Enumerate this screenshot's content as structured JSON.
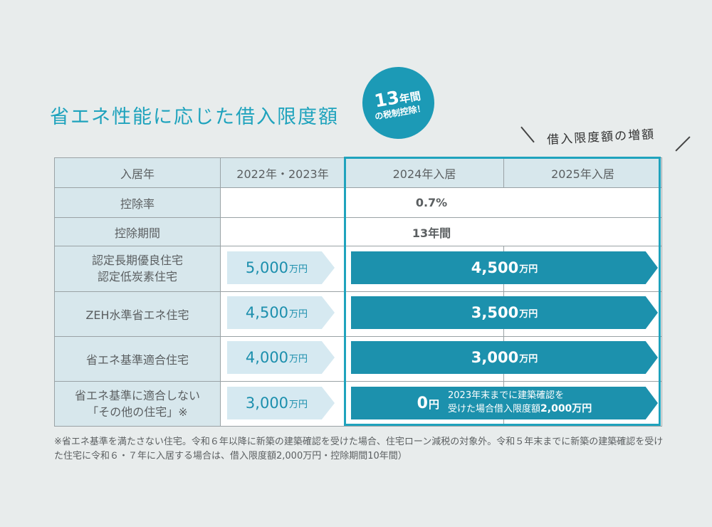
{
  "title": "省エネ性能に応じた借入限度額",
  "badge": {
    "years": "13",
    "years_unit": "年間",
    "sub": "の税制控除！"
  },
  "increase_label": "借入限度額の増額",
  "table": {
    "headers": [
      "入居年",
      "2022年・2023年",
      "2024年入居",
      "2025年入居"
    ],
    "rate_label": "控除率",
    "rate_value": "0.7%",
    "period_label": "控除期間",
    "period_value": "13年間",
    "rows": [
      {
        "label": "認定長期優良住宅\n認定低炭素住宅",
        "old": "5,000",
        "new": "4,500"
      },
      {
        "label": "ZEH水準省エネ住宅",
        "old": "4,500",
        "new": "3,500"
      },
      {
        "label": "省エネ基準適合住宅",
        "old": "4,000",
        "new": "3,000"
      },
      {
        "label": "省エネ基準に適合しない\n「その他の住宅」※",
        "old": "3,000",
        "new": "0"
      }
    ],
    "unit": "万円",
    "zero_unit": "円",
    "zero_note_line1": "2023年末までに建築確認を",
    "zero_note_line2": "受けた場合借入限度額",
    "zero_note_amount": "2,000万円"
  },
  "footnote": "※省エネ基準を満たさない住宅。令和６年以降に新築の建築確認を受けた場合、住宅ローン減税の対象外。令和５年末までに新築の建築確認を受けた住宅に令和６・７年に入居する場合は、借入限度額2,000万円・控除期間10年間）",
  "colors": {
    "accent": "#1fa3bd",
    "dark_arrow": "#1c91ad",
    "light_arrow": "#d6e9f1",
    "header_bg": "#d7e7ec",
    "page_bg": "#e8ecec"
  }
}
